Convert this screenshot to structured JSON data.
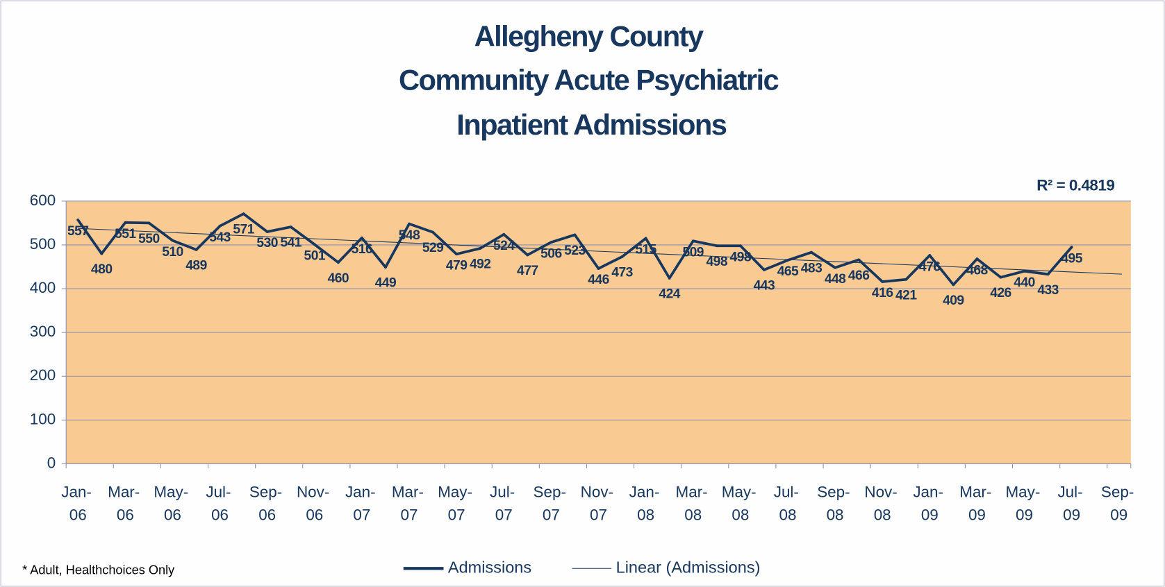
{
  "chart_data": {
    "type": "line",
    "title": [
      "Allegheny County",
      "Community Acute Psychiatric",
      "Inpatient Admissions"
    ],
    "annotation": "R² = 0.4819",
    "footnote": "* Adult, Healthchoices Only",
    "categories": [
      "Jan-06",
      null,
      "Mar-06",
      null,
      "May-06",
      null,
      "Jul-06",
      null,
      "Sep-06",
      null,
      "Nov-06",
      null,
      "Jan-07",
      null,
      "Mar-07",
      null,
      "May-07",
      null,
      "Jul-07",
      null,
      "Sep-07",
      null,
      "Nov-07",
      null,
      "Jan-08",
      null,
      "Mar-08",
      null,
      "May-08",
      null,
      "Jul-08",
      null,
      "Sep-08",
      null,
      "Nov-08",
      null,
      "Jan-09",
      null,
      "Mar-09",
      null,
      "May-09",
      null,
      "Jul-09",
      null,
      "Sep-09"
    ],
    "series": [
      {
        "name": "Admissions",
        "color": "#17375e",
        "values": [
          557,
          480,
          551,
          550,
          510,
          489,
          543,
          571,
          530,
          541,
          501,
          460,
          516,
          449,
          548,
          529,
          479,
          492,
          524,
          477,
          506,
          523,
          446,
          473,
          515,
          424,
          509,
          498,
          498,
          443,
          465,
          483,
          448,
          466,
          416,
          421,
          476,
          409,
          468,
          426,
          440,
          433,
          495,
          null,
          null
        ]
      }
    ],
    "trendline": {
      "name": "Linear (Admissions)",
      "color": "#17375e"
    },
    "ylim": [
      0,
      600
    ],
    "yticks": [
      0,
      100,
      200,
      300,
      400,
      500,
      600
    ],
    "grid": true,
    "plot_color": "#f9cb93",
    "legend": "bottom"
  }
}
